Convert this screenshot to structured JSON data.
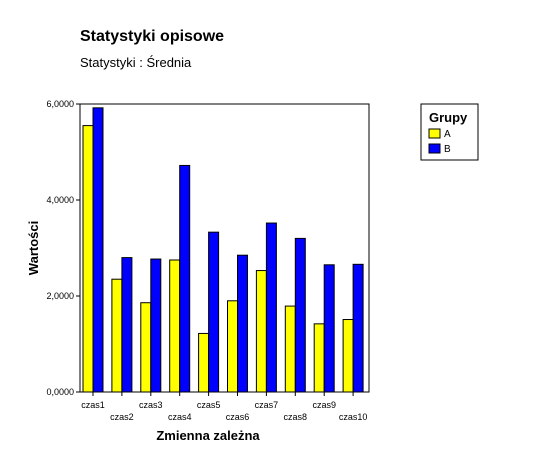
{
  "header": {
    "title": "Statystyki opisowe",
    "subtitle": "Statystyki : Średnia"
  },
  "chart_data": {
    "type": "bar",
    "title": "Statystyki opisowe",
    "subtitle": "Statystyki : Średnia",
    "xlabel": "Zmienna zależna",
    "ylabel": "Wartości",
    "categories": [
      "czas1",
      "czas2",
      "czas3",
      "czas4",
      "czas5",
      "czas6",
      "czas7",
      "czas8",
      "czas9",
      "czas10"
    ],
    "series": [
      {
        "name": "A",
        "color": "#ffff00",
        "values": [
          5.55,
          2.35,
          1.86,
          2.75,
          1.22,
          1.9,
          2.53,
          1.79,
          1.42,
          1.51
        ]
      },
      {
        "name": "B",
        "color": "#0000ff",
        "values": [
          5.92,
          2.8,
          2.77,
          4.72,
          3.33,
          2.85,
          3.52,
          3.2,
          2.65,
          2.66
        ]
      }
    ],
    "ylim": [
      0,
      6
    ],
    "yticks": [
      0,
      2,
      4,
      6
    ],
    "ytick_labels": [
      "0,0000",
      "2,0000",
      "4,0000",
      "6,0000"
    ],
    "legend": {
      "title": "Grupy",
      "placement": "top-right"
    },
    "grid": false
  }
}
